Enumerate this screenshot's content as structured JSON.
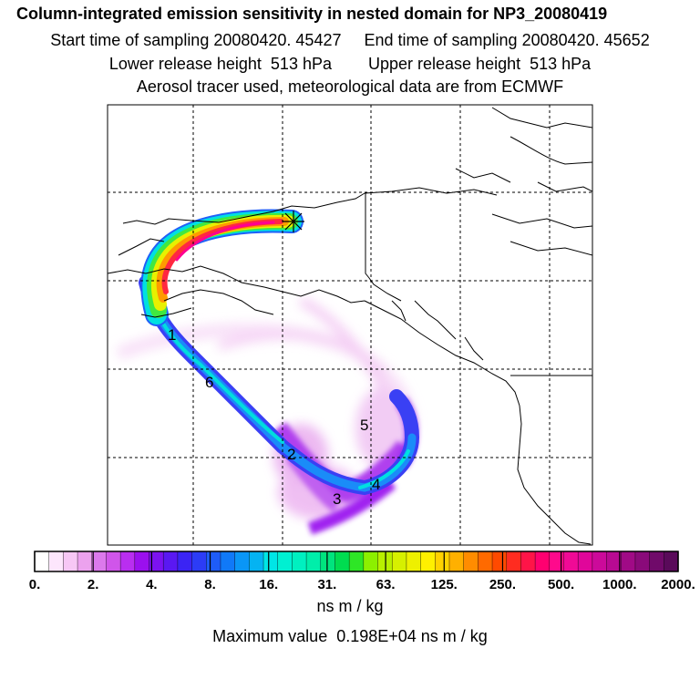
{
  "header": {
    "title": "Column-integrated emission sensitivity in nested domain for NP3_20080419",
    "line2": "Start time of sampling 20080420. 45427     End time of sampling 20080420. 45652",
    "line3": "Lower release height  513 hPa        Upper release height  513 hPa",
    "line4": "Aerosol tracer used, meteorological data are from ECMWF"
  },
  "colorbar": {
    "tick_labels": [
      "0.",
      "2.",
      "4.",
      "8.",
      "16.",
      "31.",
      "63.",
      "125.",
      "250.",
      "500.",
      "1000.",
      "2000."
    ],
    "colors": [
      "#ffffff",
      "#fde6fc",
      "#f7c7f5",
      "#eca2ee",
      "#dc79ec",
      "#d055ea",
      "#b92ef0",
      "#9b10ee",
      "#7c12f0",
      "#5a18f2",
      "#3b24f4",
      "#2c3cf6",
      "#1e5cf8",
      "#1079f8",
      "#0a96f6",
      "#05b3f2",
      "#00e6e6",
      "#00f0d2",
      "#00f0c0",
      "#00eeaa",
      "#00e47e",
      "#00dc50",
      "#2ee626",
      "#8cf000",
      "#b8f000",
      "#d6f000",
      "#eef000",
      "#fff000",
      "#ffd200",
      "#ffb000",
      "#ff8c00",
      "#ff6a00",
      "#ff4a00",
      "#ff2c20",
      "#ff1448",
      "#ff0070",
      "#ff0a8c",
      "#f00a96",
      "#e0069a",
      "#cc0a9a",
      "#b80a92",
      "#a00a86",
      "#8a0a7a",
      "#700a6a",
      "#5a0a5a"
    ],
    "units": "ns m / kg"
  },
  "max_value_text": "Maximum value  0.198E+04 ns m / kg",
  "markers": [
    "1",
    "2",
    "3",
    "4",
    "5",
    "6"
  ],
  "release_marker": "release-point-asterisk"
}
